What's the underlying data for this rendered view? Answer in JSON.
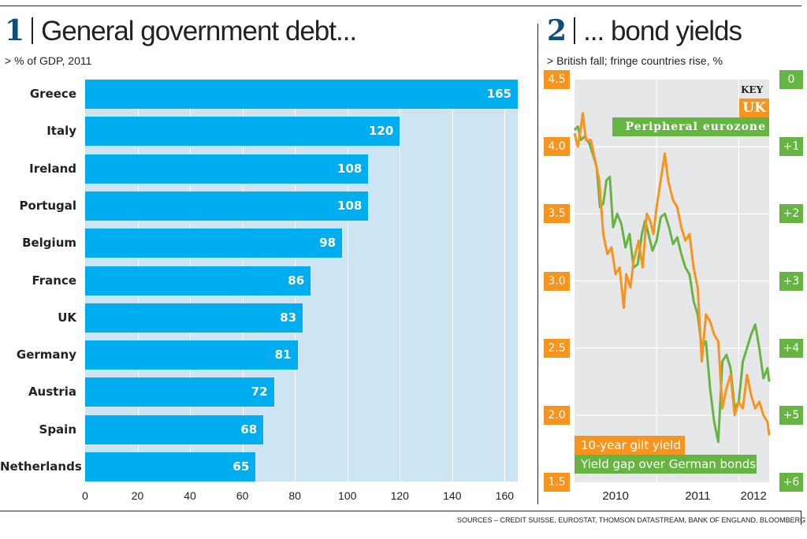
{
  "chart_data": [
    {
      "type": "bar",
      "panel_number": "1",
      "title": "General government debt...",
      "subtitle": "> % of GDP, 2011",
      "orientation": "horizontal",
      "categories": [
        "Greece",
        "Italy",
        "Ireland",
        "Portugal",
        "Belgium",
        "France",
        "UK",
        "Germany",
        "Austria",
        "Spain",
        "Netherlands"
      ],
      "values": [
        165,
        120,
        108,
        108,
        98,
        86,
        83,
        81,
        72,
        68,
        65
      ],
      "value_labels": [
        "165",
        "120",
        "108",
        "108",
        "98",
        "86",
        "83",
        "81",
        "72",
        "68",
        "65"
      ],
      "xlabel": "",
      "ylabel": "",
      "xlim": [
        0,
        165
      ],
      "xticks": [
        0,
        20,
        40,
        60,
        80,
        100,
        120,
        140,
        160
      ],
      "xtick_labels": [
        "0",
        "20",
        "40",
        "60",
        "80",
        "100",
        "120",
        "140",
        "160"
      ],
      "grid": true,
      "colors": {
        "bar": "#00adef",
        "background": "#cde5f3",
        "value_text": "#ffffff"
      }
    },
    {
      "type": "line",
      "panel_number": "2",
      "title": "... bond yields",
      "subtitle": "> British fall; fringe countries rise, %",
      "x_range": [
        2010.0,
        2012.37
      ],
      "x_tick_labels": [
        "2010",
        "2011",
        "2012"
      ],
      "x_tick_positions": [
        2010.5,
        2011.5,
        2012.18
      ],
      "x_gridlines": [
        2011.0,
        2012.0
      ],
      "left_axis": {
        "range": [
          1.5,
          4.5
        ],
        "ticks": [
          4.5,
          4.0,
          3.5,
          3.0,
          2.5,
          2.0,
          1.5
        ],
        "tick_labels": [
          "4.5",
          "4.0",
          "3.5",
          "3.0",
          "2.5",
          "2.0",
          "1.5"
        ],
        "color": "#f7941d"
      },
      "right_axis": {
        "range": [
          0,
          6
        ],
        "inverted": true,
        "ticks": [
          0,
          1,
          2,
          3,
          4,
          5,
          6
        ],
        "tick_labels": [
          "0",
          "+1",
          "+2",
          "+3",
          "+4",
          "+5",
          "+6"
        ],
        "color": "#66b542"
      },
      "key": {
        "title": "KEY",
        "entries": [
          "UK",
          "Peripheral eurozone"
        ]
      },
      "legend": [
        "10-year gilt yield",
        "Yield gap over German bonds"
      ],
      "series": [
        {
          "name": "UK 10-year gilt yield",
          "axis": "left",
          "color": "#f7941d",
          "x": [
            2010.0,
            2010.04,
            2010.08,
            2010.1,
            2010.14,
            2010.2,
            2010.25,
            2010.3,
            2010.35,
            2010.4,
            2010.45,
            2010.5,
            2010.55,
            2010.6,
            2010.63,
            2010.68,
            2010.72,
            2010.78,
            2010.83,
            2010.88,
            2010.92,
            2010.96,
            2011.0,
            2011.05,
            2011.1,
            2011.14,
            2011.2,
            2011.25,
            2011.3,
            2011.35,
            2011.4,
            2011.45,
            2011.5,
            2011.55,
            2011.6,
            2011.65,
            2011.7,
            2011.75,
            2011.8,
            2011.85,
            2011.9,
            2011.95,
            2012.0,
            2012.05,
            2012.1,
            2012.15,
            2012.2,
            2012.25,
            2012.3,
            2012.35,
            2012.37
          ],
          "values": [
            4.1,
            4.0,
            4.15,
            4.25,
            4.05,
            4.05,
            3.9,
            3.75,
            3.35,
            3.2,
            3.25,
            3.05,
            3.1,
            2.8,
            3.05,
            2.95,
            3.15,
            3.3,
            3.1,
            3.5,
            3.45,
            3.35,
            3.55,
            3.75,
            3.95,
            3.75,
            3.6,
            3.55,
            3.4,
            3.3,
            3.35,
            3.1,
            2.95,
            2.4,
            2.75,
            2.7,
            2.6,
            2.55,
            2.05,
            2.2,
            2.3,
            2.0,
            2.1,
            2.05,
            2.3,
            2.15,
            2.05,
            2.1,
            2.0,
            1.95,
            1.85
          ]
        },
        {
          "name": "Peripheral eurozone yield gap over German bonds",
          "axis": "right",
          "color": "#66b542",
          "x": [
            2010.0,
            2010.04,
            2010.08,
            2010.12,
            2010.18,
            2010.22,
            2010.27,
            2010.31,
            2010.35,
            2010.39,
            2010.43,
            2010.47,
            2010.52,
            2010.57,
            2010.62,
            2010.67,
            2010.72,
            2010.77,
            2010.82,
            2010.86,
            2010.9,
            2010.95,
            2011.0,
            2011.05,
            2011.1,
            2011.15,
            2011.2,
            2011.25,
            2011.3,
            2011.35,
            2011.4,
            2011.45,
            2011.5,
            2011.55,
            2011.6,
            2011.65,
            2011.7,
            2011.75,
            2011.8,
            2011.85,
            2011.9,
            2011.95,
            2012.0,
            2012.05,
            2012.1,
            2012.15,
            2012.2,
            2012.25,
            2012.3,
            2012.35,
            2012.37
          ],
          "values": [
            0.75,
            0.7,
            0.9,
            0.85,
            0.95,
            1.1,
            1.3,
            1.9,
            1.85,
            1.5,
            1.45,
            2.2,
            2.0,
            2.15,
            2.5,
            2.3,
            2.8,
            2.75,
            2.3,
            2.1,
            2.3,
            2.55,
            2.4,
            2.05,
            2.0,
            2.2,
            2.45,
            2.35,
            2.6,
            2.8,
            2.9,
            3.3,
            3.5,
            4.0,
            3.9,
            4.6,
            5.1,
            5.4,
            4.2,
            4.1,
            4.3,
            4.9,
            4.8,
            4.2,
            4.0,
            3.8,
            3.65,
            4.0,
            4.45,
            4.3,
            4.5
          ]
        }
      ]
    }
  ],
  "panel1": {
    "number": "1",
    "title": "General government debt...",
    "subtitle": "> % of GDP, 2011"
  },
  "panel2": {
    "number": "2",
    "title": "... bond yields",
    "subtitle": "> British fall; fringe countries rise, %",
    "key_title": "KEY",
    "key_uk": "UK",
    "key_peripheral": "Peripheral eurozone",
    "legend_orange": "10-year gilt yield",
    "legend_green": "Yield gap over German bonds"
  },
  "sources": "SOURCES – CREDIT SUISSE, EUROSTAT, THOMSON DATASTREAM, BANK OF ENGLAND, BLOOMBERG"
}
